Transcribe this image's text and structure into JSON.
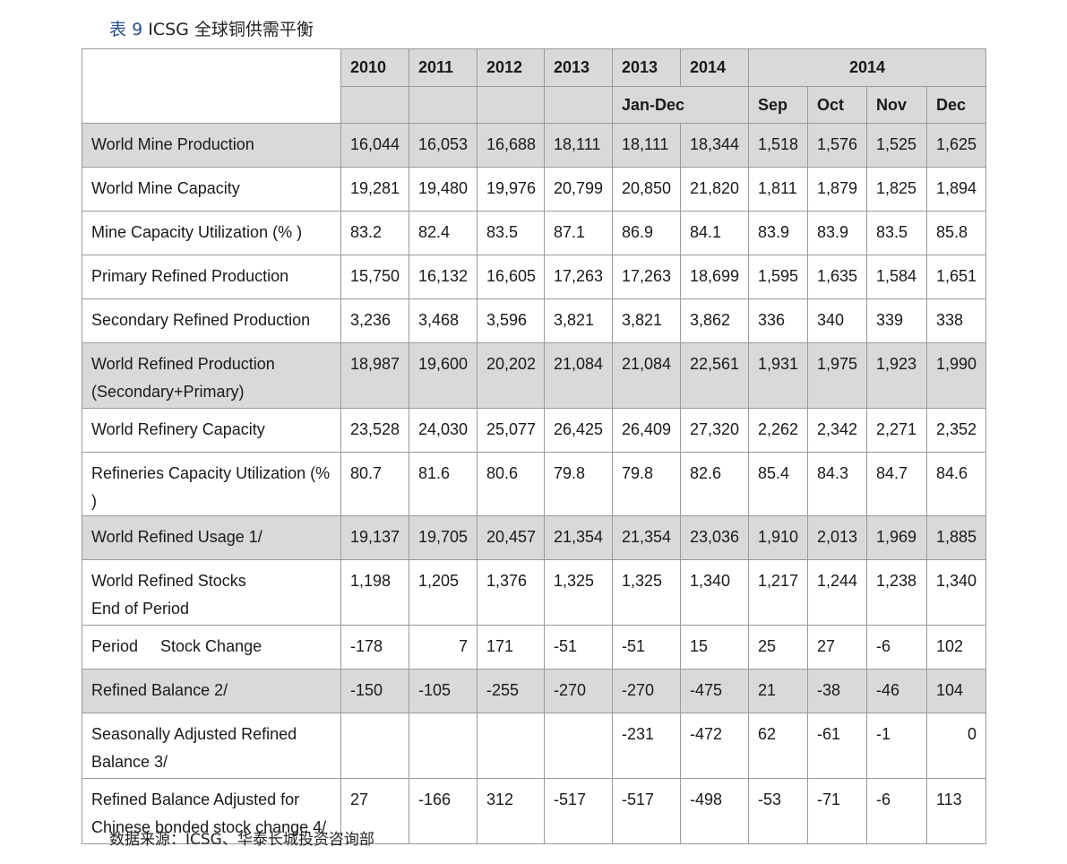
{
  "caption": {
    "label": "表",
    "number": "9",
    "title": "ICSG 全球铜供需平衡"
  },
  "source": "数据来源：ICSG、华泰长城投资咨询部",
  "header": {
    "years": [
      "2010",
      "2011",
      "2012",
      "2013",
      "2013",
      "2014"
    ],
    "group_2014": "2014",
    "jan_dec": "Jan-Dec",
    "months": [
      "Sep",
      "Oct",
      "Nov",
      "Dec"
    ]
  },
  "rows": [
    {
      "label": [
        "World Mine Production"
      ],
      "shaded": true,
      "values": [
        "16,044",
        "16,053",
        "16,688",
        "18,111",
        "18,111",
        "18,344",
        "1,518",
        "1,576",
        "1,525",
        "1,625"
      ]
    },
    {
      "label": [
        "World Mine Capacity"
      ],
      "shaded": false,
      "values": [
        "19,281",
        "19,480",
        "19,976",
        "20,799",
        "20,850",
        "21,820",
        "1,811",
        "1,879",
        "1,825",
        "1,894"
      ]
    },
    {
      "label": [
        "Mine Capacity Utilization (% )"
      ],
      "shaded": false,
      "values": [
        "83.2",
        "82.4",
        "83.5",
        "87.1",
        "86.9",
        "84.1",
        "83.9",
        "83.9",
        "83.5",
        "85.8"
      ]
    },
    {
      "label": [
        "Primary Refined Production"
      ],
      "shaded": false,
      "values": [
        "15,750",
        "16,132",
        "16,605",
        "17,263",
        "17,263",
        "18,699",
        "1,595",
        "1,635",
        "1,584",
        "1,651"
      ]
    },
    {
      "label": [
        "Secondary Refined Production"
      ],
      "shaded": false,
      "values": [
        "3,236",
        "3,468",
        "3,596",
        "3,821",
        "3,821",
        "3,862",
        "336",
        "340",
        "339",
        "338"
      ]
    },
    {
      "label": [
        "World Refined Production",
        "(Secondary+Primary)"
      ],
      "shaded": true,
      "values": [
        "18,987",
        "19,600",
        "20,202",
        "21,084",
        "21,084",
        "22,561",
        "1,931",
        "1,975",
        "1,923",
        "1,990"
      ]
    },
    {
      "label": [
        "World Refinery Capacity"
      ],
      "shaded": false,
      "values": [
        "23,528",
        "24,030",
        "25,077",
        "26,425",
        "26,409",
        "27,320",
        "2,262",
        "2,342",
        "2,271",
        "2,352"
      ]
    },
    {
      "label": [
        "Refineries Capacity Utilization (% )"
      ],
      "shaded": false,
      "values": [
        "80.7",
        "81.6",
        "80.6",
        "79.8",
        "79.8",
        "82.6",
        "85.4",
        "84.3",
        "84.7",
        "84.6"
      ]
    },
    {
      "label": [
        "World Refined Usage 1/"
      ],
      "shaded": true,
      "values": [
        "19,137",
        "19,705",
        "20,457",
        "21,354",
        "21,354",
        "23,036",
        "1,910",
        "2,013",
        "1,969",
        "1,885"
      ]
    },
    {
      "label": [
        "World Refined Stocks",
        "End of Period"
      ],
      "shaded": false,
      "values": [
        "1,198",
        "1,205",
        "1,376",
        "1,325",
        "1,325",
        "1,340",
        "1,217",
        "1,244",
        "1,238",
        "1,340"
      ]
    },
    {
      "label": [
        "Period     Stock Change"
      ],
      "shaded": false,
      "values": [
        "-178",
        "7",
        "171",
        "-51",
        "-51",
        "15",
        "25",
        "27",
        "-6",
        "102"
      ]
    },
    {
      "label": [
        "Refined Balance 2/"
      ],
      "shaded": true,
      "values": [
        "-150",
        "-105",
        "-255",
        "-270",
        "-270",
        "-475",
        "21",
        "-38",
        "-46",
        "104"
      ]
    },
    {
      "label": [
        "Seasonally Adjusted Refined",
        "Balance 3/"
      ],
      "shaded": false,
      "values": [
        "",
        "",
        "",
        "",
        "-231",
        "-472",
        "62",
        "-61",
        "-1",
        "0"
      ]
    },
    {
      "label": [
        "Refined Balance Adjusted for",
        "Chinese bonded stock change 4/"
      ],
      "shaded": false,
      "values": [
        "27",
        "-166",
        "312",
        "-517",
        "-517",
        "-498",
        "-53",
        "-71",
        "-6",
        "113"
      ]
    }
  ]
}
